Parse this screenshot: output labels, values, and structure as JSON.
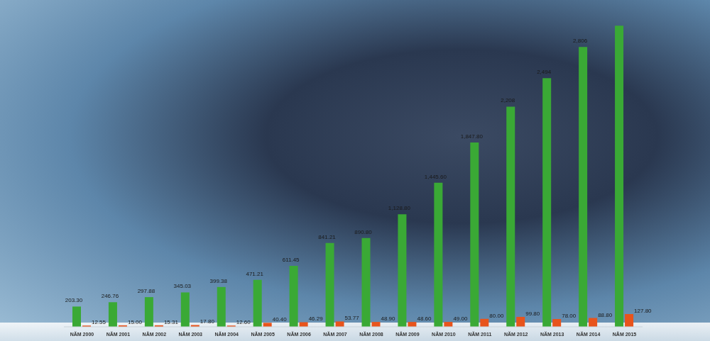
{
  "chart_data": {
    "type": "bar",
    "categories": [
      "NĂM 2000",
      "NĂM 2001",
      "NĂM 2002",
      "NĂM 2003",
      "NĂM 2004",
      "NĂM 2005",
      "NĂM 2006",
      "NĂM 2007",
      "NĂM 2008",
      "NĂM 2009",
      "NĂM 2010",
      "NĂM 2011",
      "NĂM 2012",
      "NĂM 2013",
      "NĂM 2014",
      "NĂM 2015"
    ],
    "series": [
      {
        "color": "#3aa935",
        "values": [
          203.3,
          246.76,
          297.88,
          345.03,
          399.38,
          471.21,
          611.45,
          841.21,
          890.8,
          1128.8,
          1445.6,
          1847.8,
          2208,
          2494,
          2806,
          3020
        ],
        "value_labels": [
          "203.30",
          "246.76",
          "297.88",
          "345.03",
          "399.38",
          "471.21",
          "611.45",
          "841.21",
          "890.80",
          "1,128.80",
          "1,445.60",
          "1,847.80",
          "2,208",
          "2,494",
          "2,806",
          null
        ]
      },
      {
        "color": "#e8541c",
        "values": [
          12.55,
          15,
          15.31,
          17.8,
          12.6,
          40.4,
          46.29,
          53.77,
          48.9,
          48.6,
          49,
          80,
          99.8,
          78,
          88.8,
          127.8
        ],
        "value_labels": [
          "12.55",
          "15.00",
          "15.31",
          "17.80",
          "12.60",
          "40.40",
          "46.29",
          "53.77",
          "48.90",
          "48.60",
          "49.00",
          "80.00",
          "99.80",
          "78.00",
          "88.80",
          "127.80"
        ]
      }
    ],
    "ylim": [
      0,
      3100
    ],
    "tick_labels": "x",
    "data_labels": true
  }
}
